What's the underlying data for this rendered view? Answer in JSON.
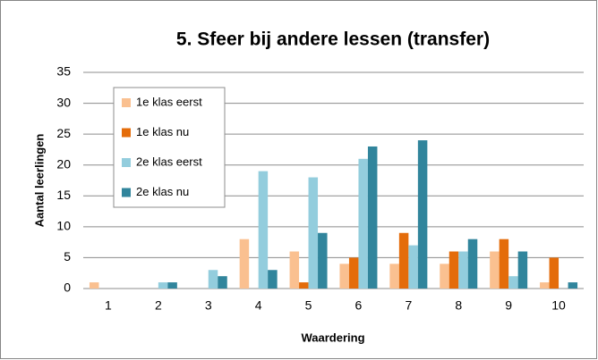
{
  "chart_data": {
    "type": "bar",
    "title": "5. Sfeer bij andere lessen (transfer)",
    "x_label": "Waardering",
    "y_label": "Aantal leerlingen",
    "categories": [
      "1",
      "2",
      "3",
      "4",
      "5",
      "6",
      "7",
      "8",
      "9",
      "10"
    ],
    "series": [
      {
        "name": "1e klas eerst",
        "color": "#fac090",
        "values": [
          1,
          0,
          0,
          8,
          6,
          4,
          4,
          4,
          6,
          1
        ]
      },
      {
        "name": "1e klas nu",
        "color": "#e46c0a",
        "values": [
          0,
          0,
          0,
          0,
          1,
          5,
          9,
          6,
          8,
          5
        ]
      },
      {
        "name": "2e klas eerst",
        "color": "#93cddd",
        "values": [
          0,
          1,
          3,
          19,
          18,
          21,
          7,
          6,
          2,
          0
        ]
      },
      {
        "name": "2e klas nu",
        "color": "#31859c",
        "values": [
          0,
          1,
          2,
          3,
          9,
          23,
          24,
          8,
          6,
          1
        ]
      }
    ],
    "ylim": [
      0,
      35
    ],
    "yticks": [
      0,
      5,
      10,
      15,
      20,
      25,
      30,
      35
    ],
    "grid": true,
    "legend": "upper left"
  }
}
